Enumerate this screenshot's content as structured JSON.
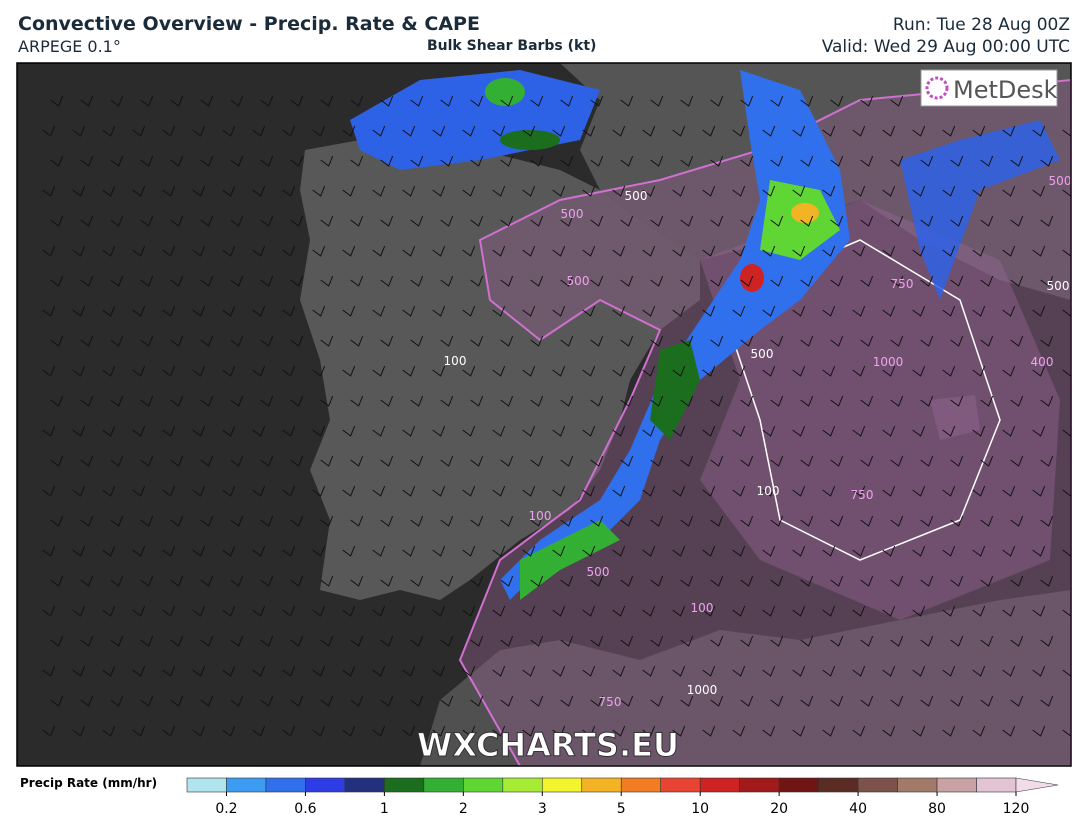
{
  "header": {
    "title": "Convective Overview - Precip. Rate & CAPE",
    "model": "ARPEGE 0.1°",
    "subtitle": "Bulk Shear Barbs (kt)",
    "run": "Run: Tue 28 Aug 00Z",
    "valid": "Valid: Wed 29 Aug 00:00 UTC"
  },
  "map": {
    "logo": "MetDesk",
    "watermark": "WXCHARTS.EU",
    "contour_labels": [
      "500",
      "500",
      "500",
      "500",
      "100",
      "750",
      "1000",
      "500",
      "400",
      "750",
      "100",
      "100",
      "500",
      "1000",
      "750",
      "100",
      "500"
    ]
  },
  "colorbar": {
    "label": "Precip Rate (mm/hr)",
    "colors": [
      "#b0e4ee",
      "#3c9cf2",
      "#3070ec",
      "#2e3ce6",
      "#23307e",
      "#1b6e1e",
      "#33b034",
      "#5fd634",
      "#a6ec34",
      "#f4f42c",
      "#f2b424",
      "#f27c24",
      "#e84434",
      "#cf2222",
      "#a21a1a",
      "#701414",
      "#5a2c24",
      "#7c524a",
      "#a27a6a",
      "#c8a2a4",
      "#e2c4d4"
    ],
    "extend_color": "#f2dcea",
    "ticks": [
      "0.2",
      "0.6",
      "1",
      "2",
      "3",
      "5",
      "10",
      "20",
      "40",
      "80",
      "120"
    ]
  }
}
